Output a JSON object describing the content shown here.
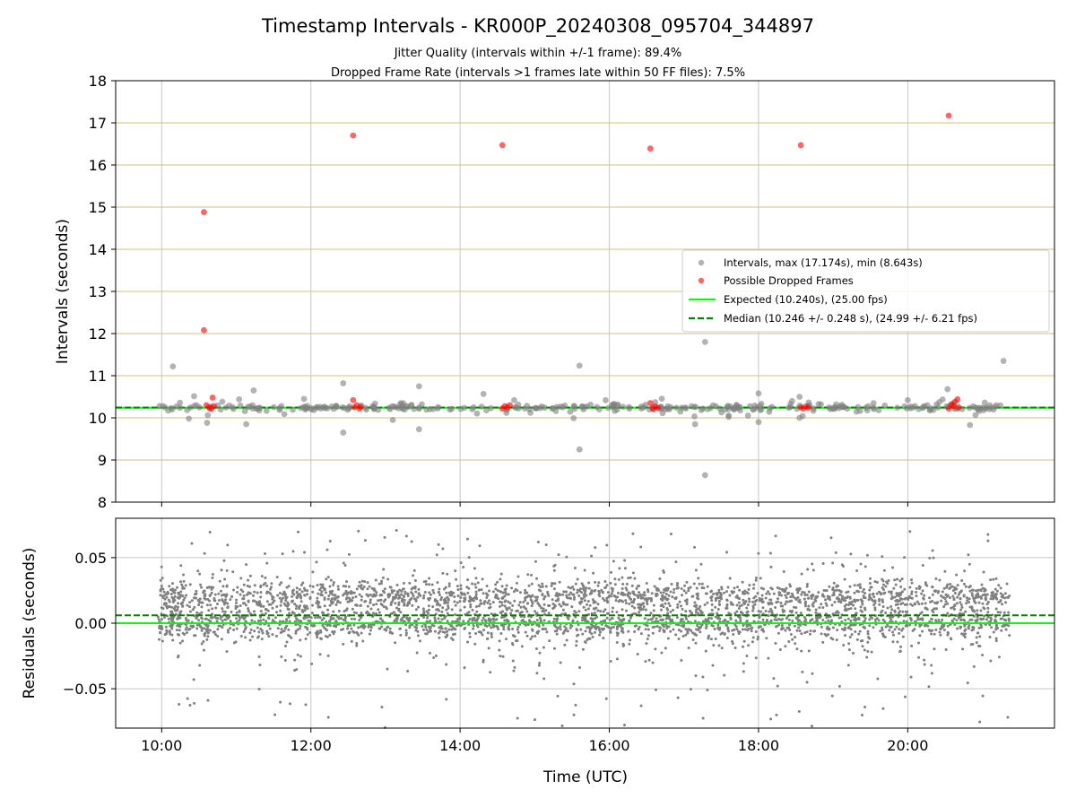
{
  "title": "Timestamp Intervals - KR000P_20240308_095704_344897",
  "subtitle_lines": [
    "Jitter Quality (intervals within +/-1 frame): 89.4%",
    "Dropped Frame Rate (intervals >1 frames late within 50 FF files): 7.5%"
  ],
  "colors": {
    "intervals": "#808080",
    "dropped": "#ff0000",
    "expected": "#00ff00",
    "median": "#008000",
    "hgrid_top": "#d4c27a",
    "grid": "#c8c8c8"
  },
  "chart_data": [
    {
      "type": "scatter",
      "name_panel": "intervals",
      "ylabel": "Intervals (seconds)",
      "xlabel": "",
      "xlim": [
        "09:23",
        "21:58"
      ],
      "ylim": [
        8,
        18
      ],
      "xticks": [
        "10:00",
        "12:00",
        "14:00",
        "16:00",
        "18:00",
        "20:00"
      ],
      "yticks": [
        8,
        9,
        10,
        11,
        12,
        13,
        14,
        15,
        16,
        17,
        18
      ],
      "grid": true,
      "legend_position": "center-right",
      "legend": [
        "Intervals, max (17.174s), min (8.643s)",
        "Possible Dropped Frames",
        "Expected (10.240s), (25.00 fps)",
        "Median (10.246 +/- 0.248 s), (24.99 +/- 6.21 fps)"
      ],
      "reference_lines": {
        "expected": 10.24,
        "median": 10.246
      },
      "time_range": [
        "09:57",
        "21:22"
      ],
      "series": [
        {
          "name": "Intervals, max (17.174s), min (8.643s)",
          "approx_count": 350,
          "outliers": [
            {
              "x": "10:09",
              "y": 11.22
            },
            {
              "x": "11:08",
              "y": 9.85
            },
            {
              "x": "11:14",
              "y": 10.65
            },
            {
              "x": "12:26",
              "y": 10.82
            },
            {
              "x": "12:26",
              "y": 9.65
            },
            {
              "x": "13:27",
              "y": 10.75
            },
            {
              "x": "13:27",
              "y": 9.73
            },
            {
              "x": "15:36",
              "y": 11.24
            },
            {
              "x": "15:36",
              "y": 9.25
            },
            {
              "x": "17:09",
              "y": 9.85
            },
            {
              "x": "17:17",
              "y": 11.8
            },
            {
              "x": "17:17",
              "y": 8.64
            },
            {
              "x": "18:00",
              "y": 10.58
            },
            {
              "x": "18:00",
              "y": 9.9
            },
            {
              "x": "18:33",
              "y": 10.5
            },
            {
              "x": "18:33",
              "y": 10.0
            },
            {
              "x": "20:00",
              "y": 10.42
            },
            {
              "x": "20:32",
              "y": 10.68
            },
            {
              "x": "20:50",
              "y": 9.83
            },
            {
              "x": "21:17",
              "y": 11.35
            }
          ]
        },
        {
          "name": "Possible Dropped Frames",
          "points": [
            {
              "x": "10:34",
              "y": 14.88
            },
            {
              "x": "10:34",
              "y": 12.08
            },
            {
              "x": "10:36",
              "y": 10.3
            },
            {
              "x": "10:38",
              "y": 10.25
            },
            {
              "x": "10:40",
              "y": 10.22
            },
            {
              "x": "10:41",
              "y": 10.48
            },
            {
              "x": "10:42",
              "y": 10.28
            },
            {
              "x": "12:34",
              "y": 16.7
            },
            {
              "x": "12:34",
              "y": 10.42
            },
            {
              "x": "12:35",
              "y": 10.25
            },
            {
              "x": "12:37",
              "y": 10.3
            },
            {
              "x": "12:39",
              "y": 10.22
            },
            {
              "x": "12:40",
              "y": 10.26
            },
            {
              "x": "14:34",
              "y": 16.47
            },
            {
              "x": "14:34",
              "y": 10.22
            },
            {
              "x": "14:36",
              "y": 10.28
            },
            {
              "x": "14:38",
              "y": 10.25
            },
            {
              "x": "14:40",
              "y": 10.3
            },
            {
              "x": "16:33",
              "y": 16.39
            },
            {
              "x": "16:33",
              "y": 10.35
            },
            {
              "x": "16:35",
              "y": 10.22
            },
            {
              "x": "16:37",
              "y": 10.27
            },
            {
              "x": "16:39",
              "y": 10.24
            },
            {
              "x": "18:34",
              "y": 16.47
            },
            {
              "x": "18:34",
              "y": 10.25
            },
            {
              "x": "18:36",
              "y": 10.22
            },
            {
              "x": "18:38",
              "y": 10.27
            },
            {
              "x": "18:40",
              "y": 10.24
            },
            {
              "x": "20:33",
              "y": 17.17
            },
            {
              "x": "20:33",
              "y": 10.22
            },
            {
              "x": "20:35",
              "y": 10.32
            },
            {
              "x": "20:37",
              "y": 10.28
            },
            {
              "x": "20:38",
              "y": 10.38
            },
            {
              "x": "20:40",
              "y": 10.44
            },
            {
              "x": "20:41",
              "y": 10.25
            }
          ]
        }
      ]
    },
    {
      "type": "scatter",
      "name_panel": "residuals",
      "ylabel": "Residuals (seconds)",
      "xlabel": "Time (UTC)",
      "xlim": [
        "09:23",
        "21:58"
      ],
      "ylim": [
        -0.08,
        0.08
      ],
      "xticks": [
        "10:00",
        "12:00",
        "14:00",
        "16:00",
        "18:00",
        "20:00"
      ],
      "yticks": [
        -0.05,
        0.0,
        0.05
      ],
      "ytick_labels": [
        "−0.05",
        "0.00",
        "0.05"
      ],
      "grid": true,
      "reference_lines": {
        "expected": 0.0,
        "median": 0.006
      },
      "series": [
        {
          "name": "residuals",
          "approx_count": 4000,
          "x_range": [
            "09:57",
            "21:22"
          ],
          "bands": [
            {
              "center": 0.0,
              "spread": 0.006
            },
            {
              "center": 0.02,
              "spread": 0.006
            }
          ],
          "scatter_range": [
            -0.08,
            0.08
          ]
        }
      ]
    }
  ]
}
